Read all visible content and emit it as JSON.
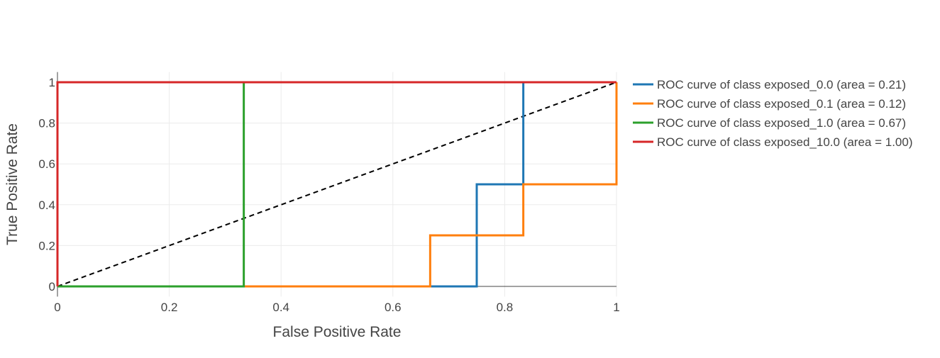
{
  "chart_data": {
    "type": "line",
    "title": "",
    "xlabel": "False Positive Rate",
    "ylabel": "True Positive Rate",
    "xlim": [
      0,
      1
    ],
    "ylim": [
      -0.05,
      1.05
    ],
    "x_ticks": [
      0,
      0.2,
      0.4,
      0.6,
      0.8,
      1
    ],
    "x_tick_labels": [
      "0",
      "0.2",
      "0.4",
      "0.6",
      "0.8",
      "1"
    ],
    "y_ticks": [
      0,
      0.2,
      0.4,
      0.6,
      0.8,
      1
    ],
    "y_tick_labels": [
      "0",
      "0.2",
      "0.4",
      "0.6",
      "0.8",
      "1"
    ],
    "grid": true,
    "legend_position": "right",
    "reference_line": {
      "style": "dashed",
      "color": "#000000",
      "x": [
        0,
        1
      ],
      "y": [
        0,
        1
      ]
    },
    "series": [
      {
        "name": "ROC curve of class exposed_0.0 (area = 0.21)",
        "color": "#1f77b4",
        "x": [
          0,
          0.75,
          0.75,
          0.8333,
          0.8333,
          1
        ],
        "y": [
          0,
          0,
          0.5,
          0.5,
          1,
          1
        ]
      },
      {
        "name": "ROC curve of class exposed_0.1 (area = 0.12)",
        "color": "#ff7f0e",
        "x": [
          0,
          0.6667,
          0.6667,
          0.8333,
          0.8333,
          1,
          1
        ],
        "y": [
          0,
          0,
          0.25,
          0.25,
          0.5,
          0.5,
          1
        ]
      },
      {
        "name": "ROC curve of class exposed_1.0 (area = 0.67)",
        "color": "#2ca02c",
        "x": [
          0,
          0.3333,
          0.3333,
          1
        ],
        "y": [
          0,
          0,
          1,
          1
        ]
      },
      {
        "name": "ROC curve of class exposed_10.0 (area = 1.00)",
        "color": "#d62728",
        "x": [
          0,
          0,
          1
        ],
        "y": [
          0,
          1,
          1
        ]
      }
    ]
  }
}
